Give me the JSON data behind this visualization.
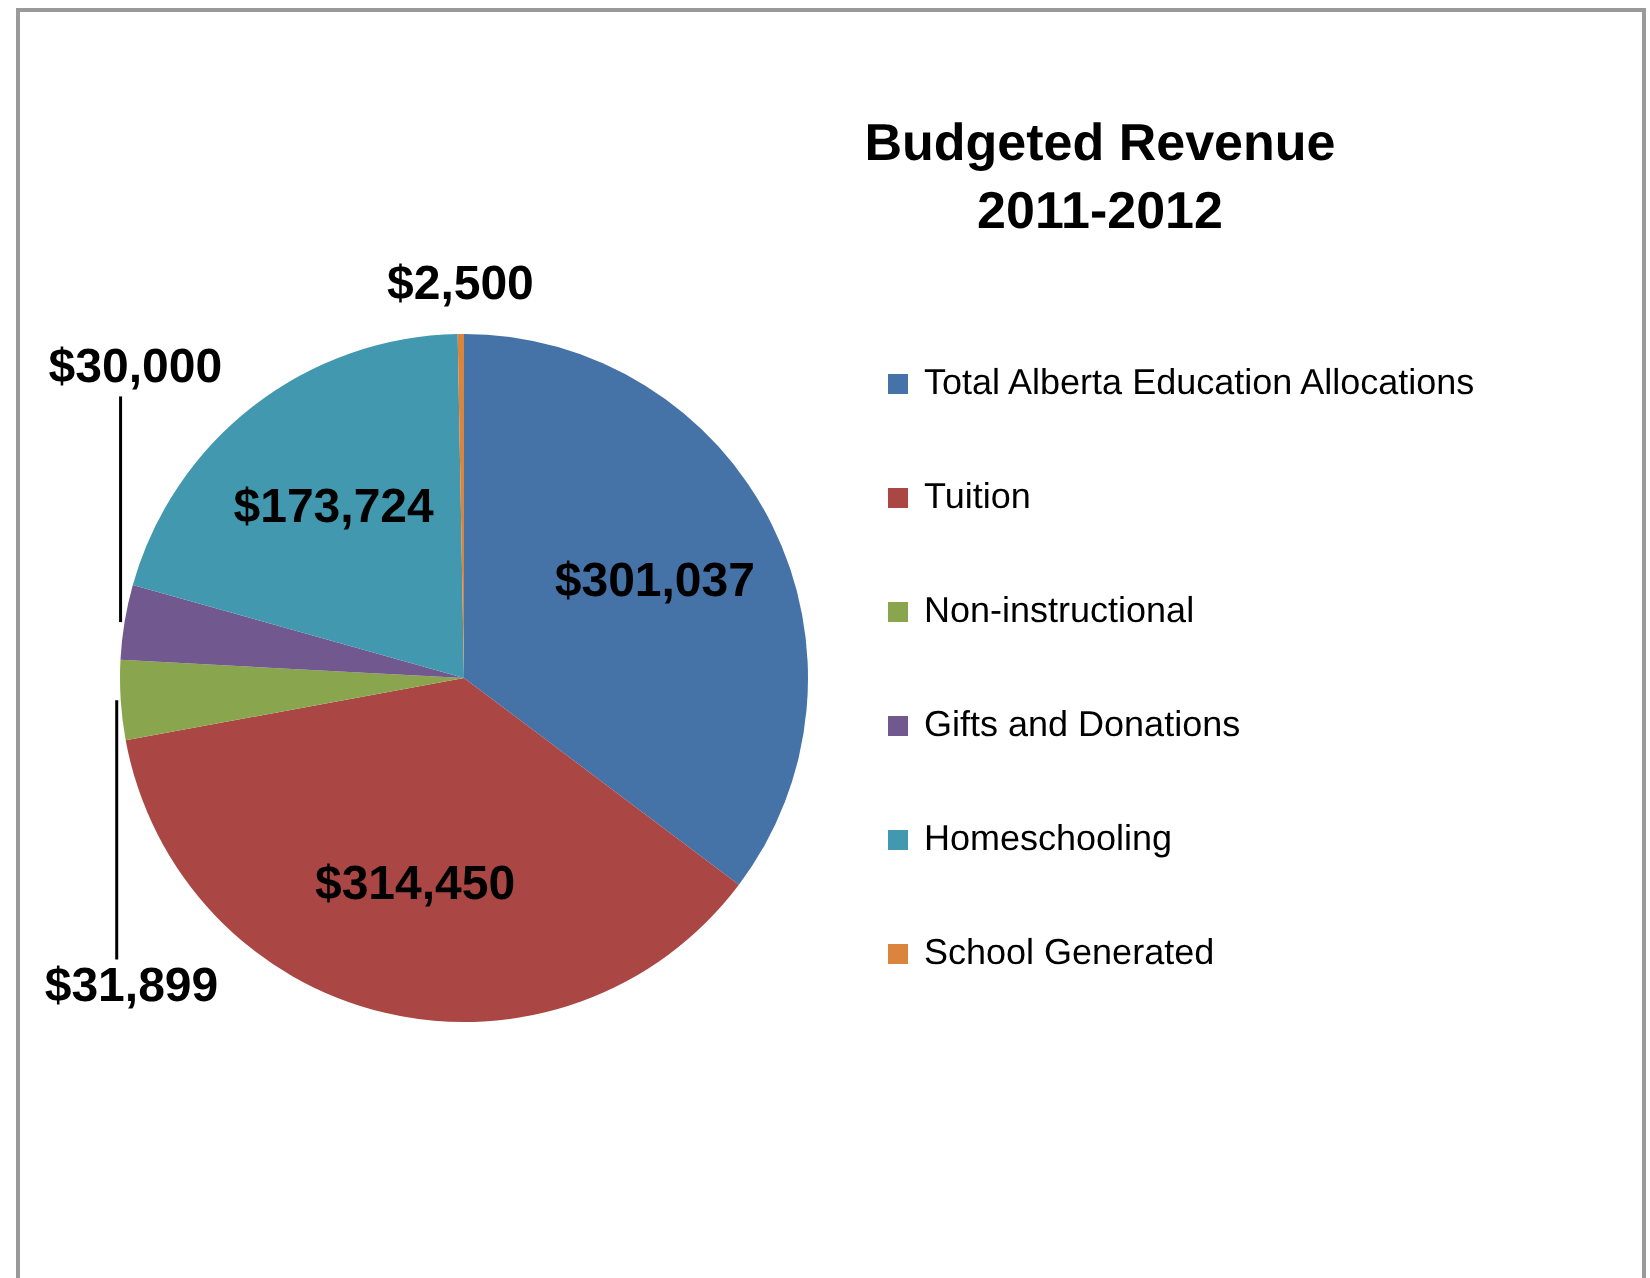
{
  "chart_data": {
    "type": "pie",
    "title": "Budgeted Revenue\n2011-2012",
    "categories": [
      "Total Alberta Education Allocations",
      "Tuition",
      "Non-instructional",
      "Gifts and Donations",
      "Homeschooling",
      "School Generated"
    ],
    "values": [
      301037,
      314450,
      31899,
      30000,
      173724,
      2500
    ],
    "colors": [
      "#4572a7",
      "#aa4643",
      "#89a54e",
      "#71588f",
      "#4198af",
      "#db843d"
    ],
    "value_labels": [
      "$301,037",
      "$314,450",
      "$31,899",
      "$30,000",
      "$173,724",
      "$2,500"
    ],
    "legend": "right"
  }
}
